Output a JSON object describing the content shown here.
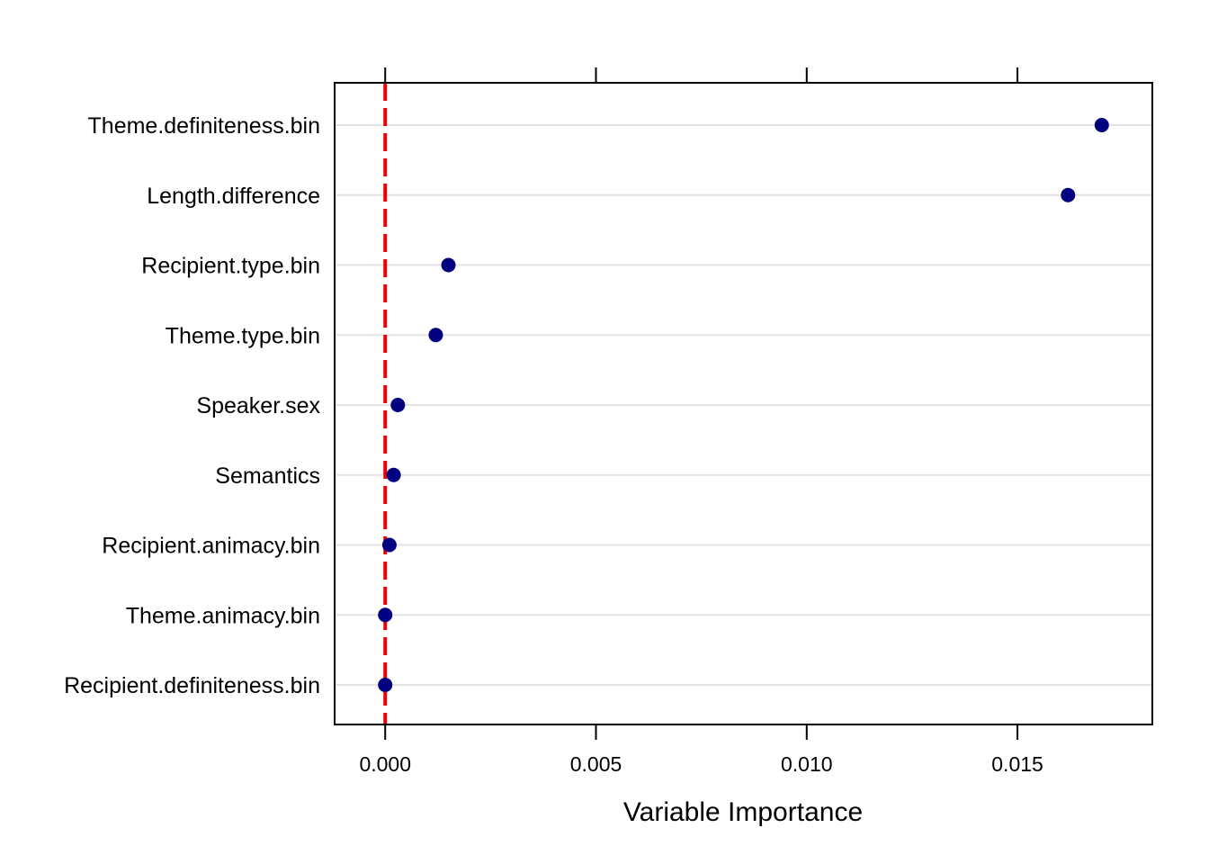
{
  "chart_data": {
    "type": "scatter",
    "xlabel": "Variable Importance",
    "ylabel": "",
    "xlim": [
      -0.0012,
      0.0182
    ],
    "x_ticks": [
      0.0,
      0.005,
      0.01,
      0.015
    ],
    "x_tick_labels": [
      "0.000",
      "0.005",
      "0.010",
      "0.015"
    ],
    "categories": [
      "Theme.definiteness.bin",
      "Length.difference",
      "Recipient.type.bin",
      "Theme.type.bin",
      "Speaker.sex",
      "Semantics",
      "Recipient.animacy.bin",
      "Theme.animacy.bin",
      "Recipient.definiteness.bin"
    ],
    "values": [
      0.017,
      0.0162,
      0.0015,
      0.0012,
      0.0003,
      0.0002,
      0.0001,
      0.0,
      0.0
    ],
    "reference_line": {
      "x": 0.0,
      "style": "dashed",
      "color": "#ee0000"
    },
    "point_color": "#000080",
    "grid": "horizontal",
    "legend": "none"
  }
}
